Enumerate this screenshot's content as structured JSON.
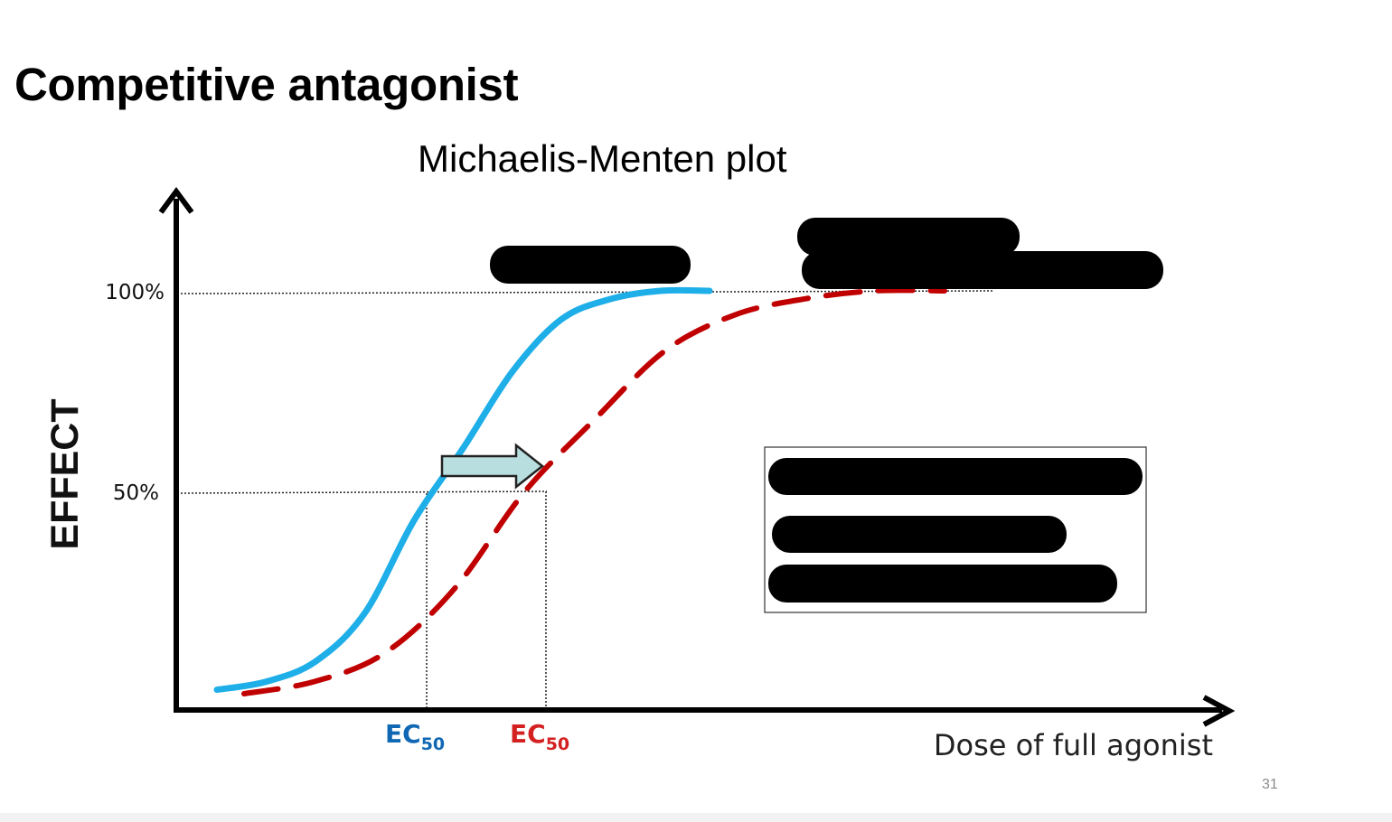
{
  "slide": {
    "title": "Competitive antagonist",
    "page_number": "31"
  },
  "chart_data": {
    "type": "line",
    "title": "Michaelis-Menten plot",
    "xlabel": "Dose of full agonist",
    "ylabel": "EFFECT",
    "y_ticks": [
      {
        "label": "100%",
        "value": 100
      },
      {
        "label": "50%",
        "value": 50
      }
    ],
    "ylim": [
      0,
      100
    ],
    "x_scale": "log (unlabeled dose axis)",
    "grid": "dotted reference lines at 50% and 100%",
    "series": [
      {
        "style": "solid",
        "color": "#1EAEE8",
        "ec50_label": {
          "main": "EC",
          "sub": "50",
          "color": "#1068B4"
        },
        "x": [
          0.0,
          0.1,
          0.2,
          0.3,
          0.4,
          0.5,
          0.6,
          0.7,
          0.8,
          0.9,
          1.0
        ],
        "y": [
          1,
          3,
          8,
          20,
          43,
          61,
          80,
          93,
          98,
          100,
          100
        ]
      },
      {
        "style": "dashed",
        "color": "#C00000",
        "ec50_label": {
          "main": "EC",
          "sub": "50",
          "color": "#D42020"
        },
        "x": [
          0.0,
          0.1,
          0.2,
          0.3,
          0.4,
          0.5,
          0.6,
          0.7,
          0.8,
          0.9,
          1.0
        ],
        "y": [
          0,
          3,
          10,
          26,
          50,
          68,
          85,
          94,
          98,
          100,
          100
        ]
      }
    ],
    "annotations": [
      {
        "type": "arrow",
        "meaning": "rightward shift of dose-response curve",
        "fill": "#B8DEE0"
      }
    ],
    "redacted_regions": [
      "label-near-curve-top-left",
      "label-top-right-line1",
      "label-top-right-line2",
      "legend-line-1",
      "legend-line-2",
      "legend-line-3"
    ],
    "legend": {
      "placement": "right-middle",
      "boxed": true
    }
  }
}
